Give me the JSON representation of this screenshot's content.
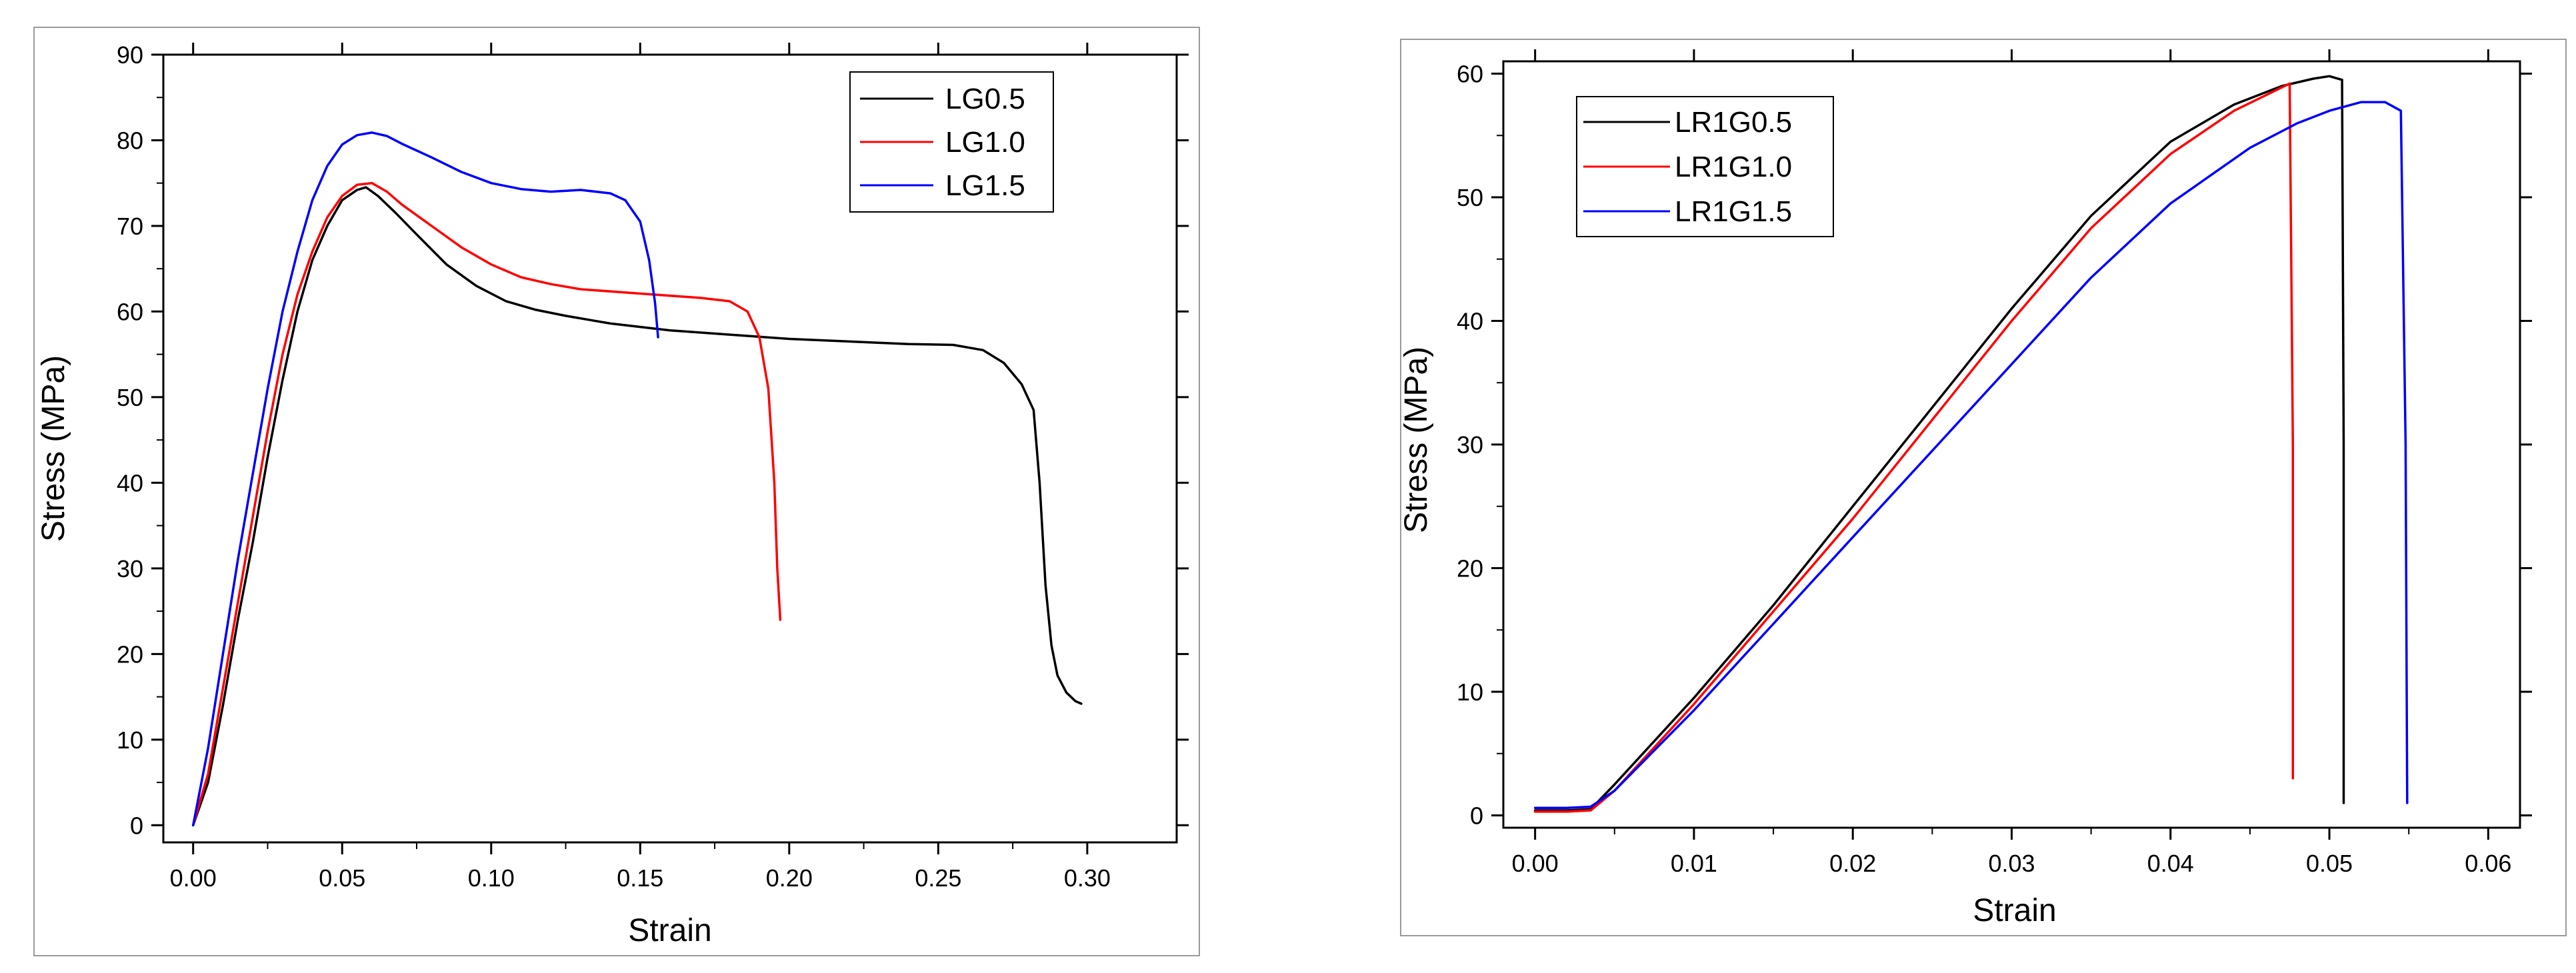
{
  "chart_data": [
    {
      "type": "line",
      "title": "",
      "xlabel": "Strain",
      "ylabel": "Stress (MPa)",
      "xlim": [
        -0.01,
        0.33
      ],
      "ylim": [
        -2,
        90
      ],
      "xticks": [
        0.0,
        0.05,
        0.1,
        0.15,
        0.2,
        0.25,
        0.3
      ],
      "xtick_labels": [
        "0.00",
        "0.05",
        "0.10",
        "0.15",
        "0.20",
        "0.25",
        "0.30"
      ],
      "yticks": [
        0,
        10,
        20,
        30,
        40,
        50,
        60,
        70,
        80,
        90
      ],
      "ytick_labels": [
        "0",
        "10",
        "20",
        "30",
        "40",
        "50",
        "60",
        "70",
        "80",
        "90"
      ],
      "legend_position": "top-right",
      "series": [
        {
          "name": "LG0.5",
          "color": "#000000",
          "x": [
            0.0,
            0.005,
            0.01,
            0.015,
            0.02,
            0.025,
            0.03,
            0.035,
            0.04,
            0.045,
            0.05,
            0.055,
            0.058,
            0.062,
            0.068,
            0.075,
            0.085,
            0.095,
            0.105,
            0.115,
            0.125,
            0.14,
            0.16,
            0.18,
            0.2,
            0.22,
            0.24,
            0.255,
            0.265,
            0.272,
            0.278,
            0.282,
            0.284,
            0.286,
            0.288,
            0.29,
            0.293,
            0.296,
            0.298
          ],
          "y": [
            0,
            5,
            14,
            24,
            33,
            43,
            52,
            60,
            66,
            70,
            73,
            74.2,
            74.5,
            73.5,
            71.5,
            69,
            65.5,
            63,
            61.2,
            60.2,
            59.5,
            58.6,
            57.8,
            57.3,
            56.8,
            56.5,
            56.2,
            56.1,
            55.5,
            54,
            51.5,
            48.5,
            40,
            28,
            21,
            17.5,
            15.5,
            14.5,
            14.2
          ]
        },
        {
          "name": "LG1.0",
          "color": "#ff0000",
          "x": [
            0.0,
            0.005,
            0.01,
            0.015,
            0.02,
            0.025,
            0.03,
            0.035,
            0.04,
            0.045,
            0.05,
            0.055,
            0.06,
            0.065,
            0.07,
            0.08,
            0.09,
            0.1,
            0.11,
            0.12,
            0.13,
            0.15,
            0.17,
            0.18,
            0.186,
            0.19,
            0.193,
            0.195,
            0.196,
            0.197
          ],
          "y": [
            0,
            6,
            16,
            26,
            36,
            46,
            55,
            62,
            67,
            71,
            73.5,
            74.8,
            75,
            74,
            72.5,
            70,
            67.5,
            65.5,
            64,
            63.2,
            62.6,
            62.1,
            61.6,
            61.2,
            60,
            57,
            51,
            40,
            30,
            24
          ]
        },
        {
          "name": "LG1.5",
          "color": "#0000ff",
          "x": [
            0.0,
            0.005,
            0.01,
            0.015,
            0.02,
            0.025,
            0.03,
            0.035,
            0.04,
            0.045,
            0.05,
            0.055,
            0.06,
            0.065,
            0.07,
            0.08,
            0.09,
            0.1,
            0.11,
            0.12,
            0.13,
            0.14,
            0.145,
            0.15,
            0.153,
            0.155,
            0.156
          ],
          "y": [
            0,
            9,
            20,
            31,
            41,
            51,
            60,
            67,
            73,
            77,
            79.5,
            80.6,
            80.9,
            80.5,
            79.6,
            78,
            76.3,
            75,
            74.3,
            74,
            74.2,
            73.8,
            73,
            70.5,
            66,
            61,
            57
          ]
        }
      ]
    },
    {
      "type": "line",
      "title": "",
      "xlabel": "Strain",
      "ylabel": "Stress (MPa)",
      "xlim": [
        -0.002,
        0.062
      ],
      "ylim": [
        -1,
        61
      ],
      "xticks": [
        0.0,
        0.01,
        0.02,
        0.03,
        0.04,
        0.05,
        0.06
      ],
      "xtick_labels": [
        "0.00",
        "0.01",
        "0.02",
        "0.03",
        "0.04",
        "0.05",
        "0.06"
      ],
      "yticks": [
        0,
        10,
        20,
        30,
        40,
        50,
        60
      ],
      "ytick_labels": [
        "0",
        "10",
        "20",
        "30",
        "40",
        "50",
        "60"
      ],
      "legend_position": "top-left",
      "series": [
        {
          "name": "LR1G0.5",
          "color": "#000000",
          "x": [
            0.0,
            0.002,
            0.0035,
            0.005,
            0.01,
            0.015,
            0.02,
            0.025,
            0.03,
            0.035,
            0.04,
            0.044,
            0.047,
            0.049,
            0.05,
            0.0508,
            0.0509,
            0.0509
          ],
          "y": [
            0.4,
            0.4,
            0.5,
            2.5,
            9.5,
            17,
            25,
            33,
            41,
            48.5,
            54.5,
            57.5,
            59,
            59.6,
            59.8,
            59.5,
            30,
            1
          ]
        },
        {
          "name": "LR1G1.0",
          "color": "#ff0000",
          "x": [
            0.0,
            0.002,
            0.0035,
            0.005,
            0.01,
            0.015,
            0.02,
            0.025,
            0.03,
            0.035,
            0.04,
            0.044,
            0.0475,
            0.0477,
            0.0477
          ],
          "y": [
            0.3,
            0.3,
            0.4,
            2,
            9,
            16.5,
            24,
            32,
            40,
            47.5,
            53.5,
            57,
            59.2,
            30,
            3
          ]
        },
        {
          "name": "LR1G1.5",
          "color": "#0000ff",
          "x": [
            0.0,
            0.002,
            0.0035,
            0.005,
            0.01,
            0.015,
            0.02,
            0.025,
            0.03,
            0.035,
            0.04,
            0.045,
            0.048,
            0.05,
            0.052,
            0.0535,
            0.0545,
            0.0548,
            0.0549
          ],
          "y": [
            0.6,
            0.6,
            0.7,
            2,
            8.5,
            15.5,
            22.5,
            29.5,
            36.5,
            43.5,
            49.5,
            54,
            56,
            57,
            57.7,
            57.7,
            57,
            30,
            1
          ]
        }
      ]
    }
  ]
}
